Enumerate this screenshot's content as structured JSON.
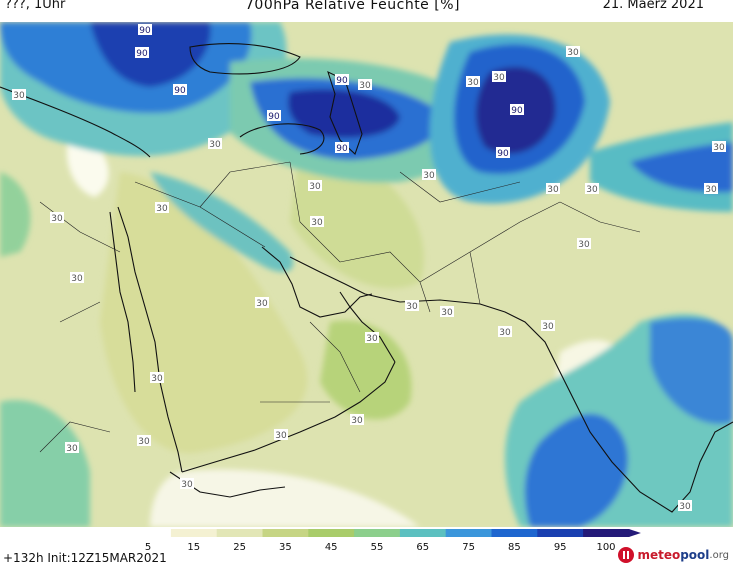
{
  "header": {
    "left": "???, 1Uhr",
    "title": "700hPa Relative Feuchte [%]",
    "date": "21. Maerz 2021"
  },
  "legend": {
    "ticks": [
      "5",
      "15",
      "25",
      "35",
      "45",
      "55",
      "65",
      "75",
      "85",
      "95",
      "100"
    ],
    "colors": [
      "#ffffff",
      "#f4f1d2",
      "#e2e6b6",
      "#c6d584",
      "#a9cc6a",
      "#8ccf8c",
      "#5cc0c0",
      "#3b96db",
      "#1e66cf",
      "#1a3fb0",
      "#241a78"
    ]
  },
  "run_info": "+132h Init:12Z15MAR2021",
  "logo": {
    "meteo": "meteo",
    "pool": "pool",
    "org": ".org"
  },
  "contour_labels": [
    "90",
    "90",
    "90",
    "90",
    "90",
    "90",
    "90",
    "90",
    "30",
    "30",
    "30",
    "30",
    "30",
    "30",
    "30",
    "30",
    "30",
    "30",
    "30",
    "30",
    "30",
    "30",
    "30",
    "30",
    "30",
    "30",
    "30",
    "30",
    "30",
    "30",
    "30",
    "30",
    "30",
    "30",
    "30",
    "30",
    "30",
    "30"
  ]
}
